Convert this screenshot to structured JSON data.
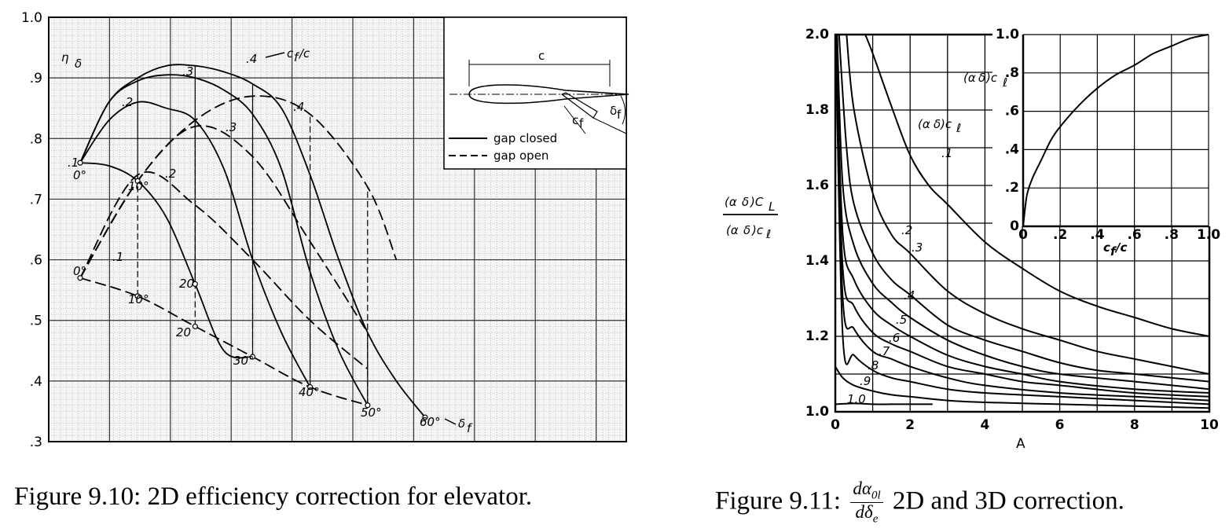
{
  "figure_left": {
    "caption": "Figure 9.10: 2D efficiency correction for elevator.",
    "ylabel": "η",
    "ylabel_sub": "δ",
    "cf_label": "c",
    "cf_label_sub": "f",
    "cf_label_tail": "/c",
    "delta_f_label": "δ",
    "delta_f_sub": "f",
    "legend": [
      "gap closed",
      "gap open"
    ],
    "inset": {
      "c": "c",
      "cf": "c",
      "cf_sub": "f",
      "delta": "δ",
      "delta_sub": "f"
    }
  },
  "figure_right": {
    "caption_prefix": "Figure 9.11:",
    "caption_num": "dα",
    "caption_num_sub": "0l",
    "caption_den": "dδ",
    "caption_den_sub": "e",
    "caption_suffix": "2D and 3D correction.",
    "ylabel_num": "(α",
    "ylabel_num_mid": "δ",
    "ylabel_num_tail": ")C",
    "ylabel_num_sub": "L",
    "ylabel_den": "(α",
    "ylabel_den_mid": "δ",
    "ylabel_den_tail": ")c",
    "ylabel_den_sub": "ℓ",
    "xlabel": "A",
    "curve_family_label": "(α",
    "curve_family_mid": "δ",
    "curve_family_tail": ")c",
    "curve_family_sub": "ℓ",
    "inset_ylabel": "(α",
    "inset_ylabel_mid": "δ",
    "inset_ylabel_tail": ")c",
    "inset_ylabel_sub": "ℓ",
    "inset_xlabel": "c",
    "inset_xlabel_sub": "f",
    "inset_xlabel_tail": "/c"
  },
  "chart_data": [
    {
      "type": "line",
      "title": "",
      "xlabel": "",
      "ylabel": "ηδ",
      "ylim": [
        0.3,
        1.0
      ],
      "yticks": [
        ".3",
        ".4",
        ".5",
        ".6",
        ".7",
        ".8",
        ".9",
        "1.0"
      ],
      "grid": true,
      "legend": "top-right",
      "deflection_labels": [
        "0°",
        "10°",
        "20",
        "30°",
        "40°",
        "50°",
        "60°"
      ],
      "cf_labels_closed": [
        ".1",
        ".2",
        ".3",
        ".4"
      ],
      "cf_labels_open": [
        ".1",
        ".2",
        ".3",
        ".4"
      ],
      "series": [
        {
          "name": "gap closed",
          "cf_c": 0.1,
          "delta_f": [
            0,
            5,
            10,
            15,
            20,
            25,
            30
          ],
          "eta": [
            0.76,
            0.755,
            0.73,
            0.67,
            0.56,
            0.45,
            0.44
          ]
        },
        {
          "name": "gap closed",
          "cf_c": 0.2,
          "delta_f": [
            0,
            5,
            10,
            15,
            20,
            25,
            30,
            35,
            40
          ],
          "eta": [
            0.76,
            0.83,
            0.86,
            0.85,
            0.83,
            0.75,
            0.6,
            0.48,
            0.39
          ]
        },
        {
          "name": "gap closed",
          "cf_c": 0.3,
          "delta_f": [
            0,
            5,
            10,
            15,
            20,
            25,
            30,
            35,
            40,
            45,
            50
          ],
          "eta": [
            0.76,
            0.86,
            0.895,
            0.905,
            0.9,
            0.88,
            0.84,
            0.75,
            0.58,
            0.45,
            0.36
          ]
        },
        {
          "name": "gap closed",
          "cf_c": 0.4,
          "delta_f": [
            0,
            5,
            10,
            15,
            20,
            25,
            30,
            35,
            40,
            45,
            50,
            55,
            60
          ],
          "eta": [
            0.76,
            0.86,
            0.9,
            0.92,
            0.92,
            0.91,
            0.89,
            0.85,
            0.74,
            0.6,
            0.48,
            0.4,
            0.34
          ]
        },
        {
          "name": "gap open",
          "cf_c": 0.1,
          "delta_f": [
            0,
            10,
            20,
            30,
            40,
            50
          ],
          "eta": [
            0.57,
            0.54,
            0.49,
            0.44,
            0.39,
            0.36
          ]
        },
        {
          "name": "gap open",
          "cf_c": 0.2,
          "delta_f": [
            0,
            10,
            20,
            30,
            40,
            50
          ],
          "eta": [
            0.57,
            0.74,
            0.69,
            0.6,
            0.5,
            0.42
          ]
        },
        {
          "name": "gap open",
          "cf_c": 0.3,
          "delta_f": [
            0,
            10,
            20,
            30,
            40,
            50
          ],
          "eta": [
            0.57,
            0.73,
            0.82,
            0.77,
            0.63,
            0.48
          ]
        },
        {
          "name": "gap open",
          "cf_c": 0.4,
          "delta_f": [
            0,
            10,
            20,
            30,
            40,
            50,
            55
          ],
          "eta": [
            0.57,
            0.73,
            0.83,
            0.87,
            0.84,
            0.72,
            0.6
          ]
        }
      ]
    },
    {
      "type": "line",
      "title": "",
      "xlabel": "A",
      "ylabel": "(αδ)CL / (αδ)cℓ",
      "xlim": [
        0,
        10
      ],
      "ylim": [
        1.0,
        2.0
      ],
      "xticks": [
        "0",
        "2",
        "4",
        "6",
        "8",
        "10"
      ],
      "yticks": [
        "1.0",
        "1.2",
        "1.4",
        "1.6",
        "1.8",
        "2.0"
      ],
      "grid": true,
      "curve_labels": [
        ".1",
        ".2",
        ".3",
        ".4",
        ".5",
        ".6",
        ".7",
        ".8",
        ".9",
        "1.0"
      ],
      "series": [
        {
          "name": ".1",
          "x": [
            0.8,
            1,
            1.5,
            2,
            2.5,
            3,
            4,
            5,
            6,
            7,
            8,
            9,
            10
          ],
          "y": [
            2.0,
            1.95,
            1.81,
            1.68,
            1.6,
            1.55,
            1.45,
            1.38,
            1.32,
            1.28,
            1.25,
            1.22,
            1.2
          ]
        },
        {
          "name": ".2",
          "x": [
            0.3,
            0.5,
            1,
            1.5,
            2,
            3,
            4,
            5,
            6,
            7,
            8,
            9,
            10
          ],
          "y": [
            2.0,
            1.8,
            1.58,
            1.47,
            1.42,
            1.32,
            1.26,
            1.22,
            1.19,
            1.16,
            1.14,
            1.12,
            1.1
          ]
        },
        {
          "name": ".3",
          "x": [
            0.1,
            0.3,
            0.5,
            1,
            1.5,
            2,
            3,
            4,
            5,
            6,
            7,
            8,
            10
          ],
          "y": [
            2.0,
            1.7,
            1.55,
            1.42,
            1.35,
            1.31,
            1.23,
            1.19,
            1.16,
            1.13,
            1.11,
            1.1,
            1.08
          ]
        },
        {
          "name": ".4",
          "x": [
            0.05,
            0.2,
            0.5,
            1,
            1.5,
            2,
            3,
            4,
            5,
            6,
            8,
            10
          ],
          "y": [
            2.0,
            1.6,
            1.44,
            1.34,
            1.29,
            1.25,
            1.19,
            1.15,
            1.12,
            1.1,
            1.08,
            1.06
          ]
        },
        {
          "name": ".5",
          "x": [
            0.02,
            0.2,
            0.5,
            1,
            1.5,
            2,
            3,
            4,
            5,
            6,
            8,
            10
          ],
          "y": [
            2.0,
            1.47,
            1.35,
            1.27,
            1.23,
            1.2,
            1.15,
            1.12,
            1.1,
            1.08,
            1.06,
            1.05
          ]
        },
        {
          "name": ".6",
          "x": [
            0.01,
            0.2,
            0.5,
            1,
            1.5,
            2,
            3,
            4,
            5,
            6,
            8,
            10
          ],
          "y": [
            2.0,
            1.38,
            1.28,
            1.21,
            1.18,
            1.16,
            1.12,
            1.1,
            1.08,
            1.07,
            1.05,
            1.04
          ]
        },
        {
          "name": ".7",
          "x": [
            0.01,
            0.2,
            0.5,
            1,
            1.5,
            2,
            3,
            4,
            6,
            8,
            10
          ],
          "y": [
            2.0,
            1.3,
            1.22,
            1.16,
            1.14,
            1.12,
            1.09,
            1.07,
            1.05,
            1.04,
            1.03
          ]
        },
        {
          "name": ".8",
          "x": [
            0.01,
            0.2,
            0.5,
            1,
            1.5,
            2,
            3,
            4,
            6,
            8,
            10
          ],
          "y": [
            2.0,
            1.2,
            1.15,
            1.11,
            1.09,
            1.08,
            1.06,
            1.05,
            1.04,
            1.03,
            1.02
          ]
        },
        {
          "name": ".9",
          "x": [
            0,
            0.2,
            0.5,
            1,
            1.5,
            2,
            3,
            4,
            6,
            8,
            10
          ],
          "y": [
            1.12,
            1.09,
            1.07,
            1.055,
            1.045,
            1.04,
            1.03,
            1.025,
            1.02,
            1.015,
            1.01
          ]
        },
        {
          "name": "1.0",
          "x": [
            0,
            0.5,
            1,
            1.5,
            2,
            2.6
          ],
          "y": [
            1.02,
            1.022,
            1.02,
            1.02,
            1.02,
            1.02
          ]
        }
      ],
      "inset": {
        "type": "line",
        "xlabel": "cf/c",
        "ylabel": "(αδ)cℓ",
        "xlim": [
          0,
          1.0
        ],
        "ylim": [
          0,
          1.0
        ],
        "xticks": [
          "0",
          ".2",
          ".4",
          ".6",
          ".8",
          "1.0"
        ],
        "yticks": [
          "0",
          ".2",
          ".4",
          ".6",
          ".8",
          "1.0"
        ],
        "series": [
          {
            "name": "",
            "x": [
              0,
              0.02,
              0.05,
              0.1,
              0.15,
              0.2,
              0.3,
              0.4,
              0.5,
              0.6,
              0.7,
              0.8,
              0.9,
              1.0
            ],
            "y": [
              0,
              0.16,
              0.25,
              0.35,
              0.45,
              0.52,
              0.63,
              0.72,
              0.79,
              0.84,
              0.9,
              0.94,
              0.98,
              1.0
            ]
          }
        ]
      }
    }
  ]
}
